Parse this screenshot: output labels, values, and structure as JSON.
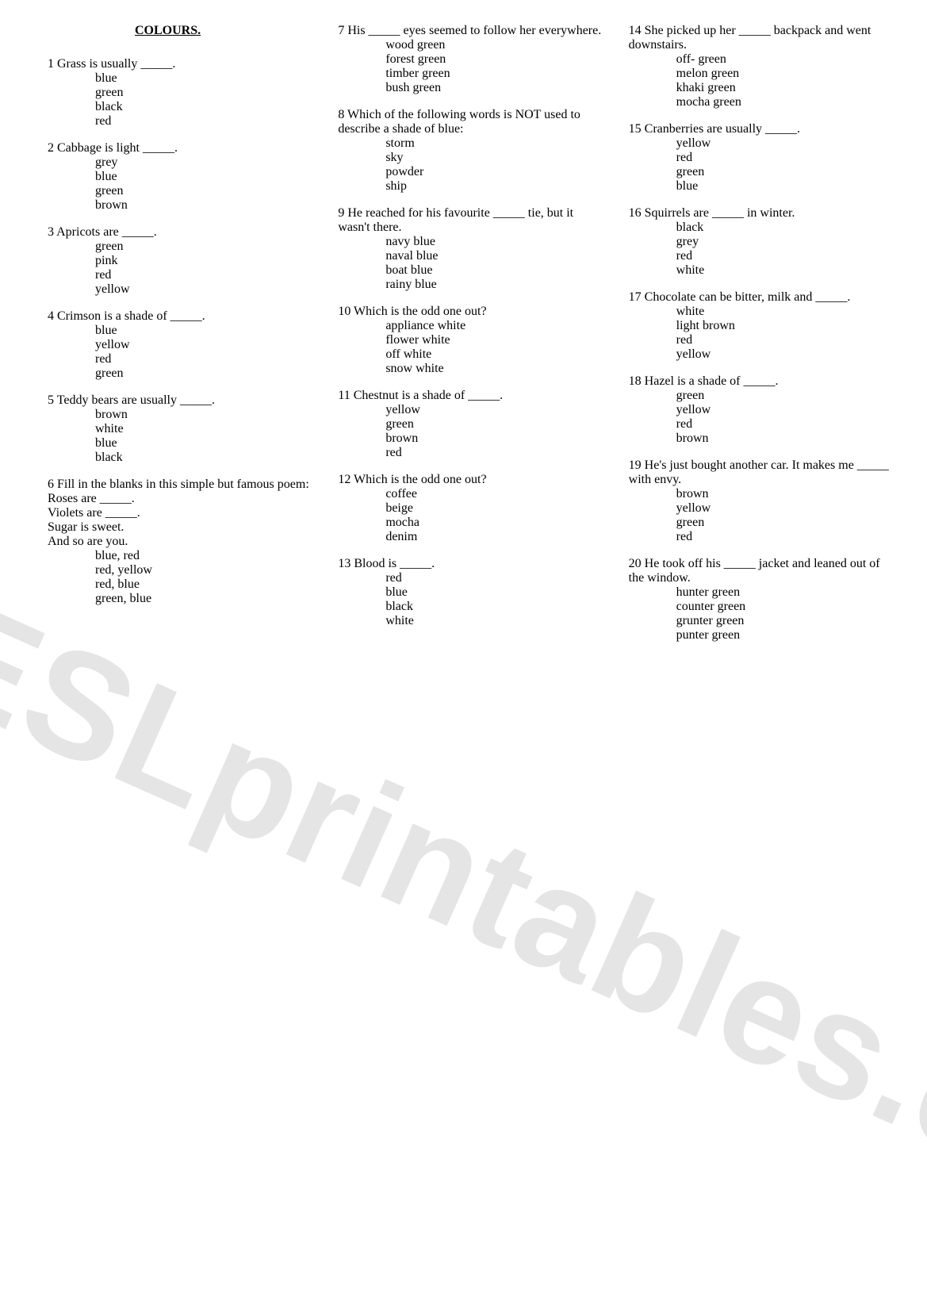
{
  "title": "COLOURS.",
  "watermark": "ESLprintables.com",
  "text_color": "#000000",
  "background_color": "#ffffff",
  "watermark_color": "rgba(0,0,0,0.10)",
  "font_family": "Times New Roman",
  "font_size_pt": 12,
  "columns": [
    {
      "questions": [
        {
          "num": "1",
          "text": "Grass is usually _____.",
          "options": [
            "blue",
            "green",
            "black",
            "red"
          ]
        },
        {
          "num": "2",
          "text": "Cabbage is light _____.",
          "options": [
            "grey",
            "blue",
            "green",
            "brown"
          ]
        },
        {
          "num": "3",
          "text": "Apricots are _____.",
          "options": [
            "green",
            "pink",
            "red",
            "yellow"
          ]
        },
        {
          "num": "4",
          "text": "Crimson is a shade of _____.",
          "options": [
            "blue",
            "yellow",
            "red",
            "green"
          ]
        },
        {
          "num": "5",
          "text": "Teddy bears are usually _____.",
          "options": [
            "brown",
            "white",
            "blue",
            "black"
          ]
        },
        {
          "num": "6",
          "text": "Fill in the blanks in this simple but famous poem:",
          "extra_lines": [
            "Roses are _____.",
            "Violets are _____.",
            "Sugar is sweet.",
            "And so are you."
          ],
          "options": [
            "blue, red",
            "red, yellow",
            "red, blue",
            "green, blue"
          ]
        }
      ]
    },
    {
      "questions": [
        {
          "num": "7",
          "text": "His _____ eyes seemed to follow her everywhere.",
          "options": [
            "wood green",
            "forest green",
            "timber green",
            "bush green"
          ]
        },
        {
          "num": "8",
          "text": "Which of the following words is NOT used to describe a shade of blue:",
          "options": [
            "storm",
            "sky",
            "powder",
            "ship"
          ]
        },
        {
          "num": "9",
          "text": "He reached for his favourite _____ tie, but it wasn't there.",
          "options": [
            "navy blue",
            "naval blue",
            "boat blue",
            "rainy blue"
          ]
        },
        {
          "num": "10",
          "text": "Which is the odd one out?",
          "options": [
            "appliance white",
            "flower white",
            "off white",
            "snow white"
          ]
        },
        {
          "num": "11",
          "text": "Chestnut is a shade of _____.",
          "options": [
            "yellow",
            "green",
            "brown",
            "red"
          ]
        },
        {
          "num": "12",
          "text": "Which is the odd one out?",
          "options": [
            "coffee",
            "beige",
            "mocha",
            "denim"
          ]
        },
        {
          "num": "13",
          "text": "Blood is _____.",
          "options": [
            "red",
            "blue",
            "black",
            "white"
          ]
        }
      ]
    },
    {
      "questions": [
        {
          "num": "14",
          "text": " She picked up her _____ backpack and went downstairs.",
          "options": [
            "off- green",
            "melon green",
            "khaki green",
            "mocha green"
          ]
        },
        {
          "num": "15",
          "text": "Cranberries are usually _____.",
          "options": [
            "yellow",
            "red",
            "green",
            "blue"
          ]
        },
        {
          "num": "16",
          "text": "Squirrels are _____ in winter.",
          "options": [
            "black",
            "grey",
            "red",
            "white"
          ]
        },
        {
          "num": "17",
          "text": "Chocolate can be bitter, milk and _____.",
          "options": [
            "white",
            "light brown",
            "red",
            "yellow"
          ]
        },
        {
          "num": "18",
          "text": "Hazel is a shade of _____.",
          "options": [
            "green",
            "yellow",
            "red",
            "brown"
          ]
        },
        {
          "num": "19",
          "text": "He's just bought another car. It makes me _____ with envy.",
          "options": [
            "brown",
            "yellow",
            "green",
            "red"
          ]
        },
        {
          "num": "20",
          "text": "He took off his _____ jacket and leaned out of the window.",
          "options": [
            "hunter green",
            "counter green",
            "grunter green",
            "punter green"
          ]
        }
      ]
    }
  ]
}
